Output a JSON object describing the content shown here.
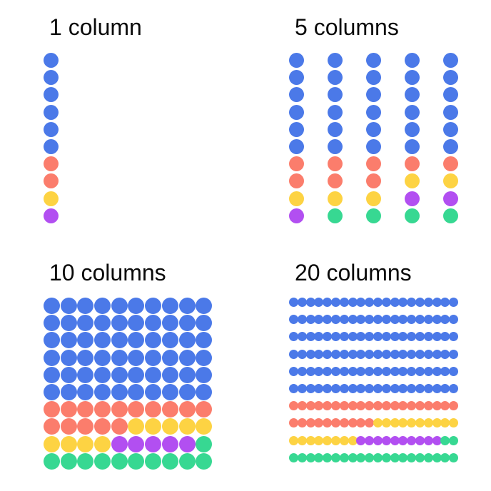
{
  "canvas": {
    "background": "#ffffff",
    "title_color": "#0a0a0a"
  },
  "palette": {
    "blue": "#4b79e8",
    "salmon": "#fb7d6c",
    "yellow": "#fdd343",
    "purple": "#b24ff1",
    "green": "#37d892"
  },
  "color_key": {
    "B": "blue",
    "S": "salmon",
    "Y": "yellow",
    "P": "purple",
    "G": "green"
  },
  "charts": [
    {
      "title": "1 column",
      "columns": 1,
      "rows": [
        "B",
        "B",
        "B",
        "B",
        "B",
        "B",
        "S",
        "S",
        "Y",
        "P"
      ]
    },
    {
      "title": "5 columns",
      "columns": 5,
      "rows": [
        "BBBBB",
        "BBBBB",
        "BBBBB",
        "BBBBB",
        "BBBBB",
        "BBBBB",
        "SSSSS",
        "SSSYY",
        "YYYPP",
        "PGGGG"
      ]
    },
    {
      "title": "10 columns",
      "columns": 10,
      "rows": [
        "BBBBBBBBBB",
        "BBBBBBBBBB",
        "BBBBBBBBBB",
        "BBBBBBBBBB",
        "BBBBBBBBBB",
        "BBBBBBBBBB",
        "SSSSSSSSSS",
        "SSSSSYYYYY",
        "YYYYPPPPPG",
        "GGGGGGGGGG"
      ]
    },
    {
      "title": "20 columns",
      "columns": 20,
      "rows": [
        "BBBBBBBBBBBBBBBBBBBB",
        "BBBBBBBBBBBBBBBBBBBB",
        "BBBBBBBBBBBBBBBBBBBB",
        "BBBBBBBBBBBBBBBBBBBB",
        "BBBBBBBBBBBBBBBBBBBB",
        "BBBBBBBBBBBBBBBBBBBB",
        "SSSSSSSSSSSSSSSSSSSS",
        "SSSSSSSSSSYYYYYYYYYY",
        "YYYYYYYYPPPPPPPPPPGG",
        "GGGGGGGGGGGGGGGGGGGG"
      ]
    }
  ],
  "chart_data": [
    {
      "type": "waffle",
      "title": "1 column",
      "columns": 1,
      "rows": 10,
      "total_dots": 10,
      "categories": [
        "blue",
        "salmon",
        "yellow",
        "purple",
        "green"
      ],
      "values": [
        6,
        2,
        1,
        1,
        0
      ],
      "percentages": [
        60,
        20,
        10,
        10,
        0
      ],
      "fill_order": "top-to-bottom",
      "legend_position": "none"
    },
    {
      "type": "waffle",
      "title": "5 columns",
      "columns": 5,
      "rows": 10,
      "total_dots": 50,
      "categories": [
        "blue",
        "salmon",
        "yellow",
        "purple",
        "green"
      ],
      "values": [
        30,
        8,
        5,
        3,
        4
      ],
      "percentages": [
        60,
        16,
        10,
        6,
        8
      ],
      "fill_order": "row-major from top-left",
      "legend_position": "none"
    },
    {
      "type": "waffle",
      "title": "10 columns",
      "columns": 10,
      "rows": 10,
      "total_dots": 100,
      "categories": [
        "blue",
        "salmon",
        "yellow",
        "purple",
        "green"
      ],
      "values": [
        60,
        15,
        9,
        5,
        11
      ],
      "percentages": [
        60,
        15,
        9,
        5,
        11
      ],
      "fill_order": "row-major from top-left",
      "legend_position": "none"
    },
    {
      "type": "waffle",
      "title": "20 columns",
      "columns": 20,
      "rows": 10,
      "total_dots": 200,
      "categories": [
        "blue",
        "salmon",
        "yellow",
        "purple",
        "green"
      ],
      "values": [
        120,
        30,
        18,
        10,
        22
      ],
      "percentages": [
        60,
        15,
        9,
        5,
        11
      ],
      "fill_order": "row-major from top-left",
      "legend_position": "none"
    }
  ]
}
